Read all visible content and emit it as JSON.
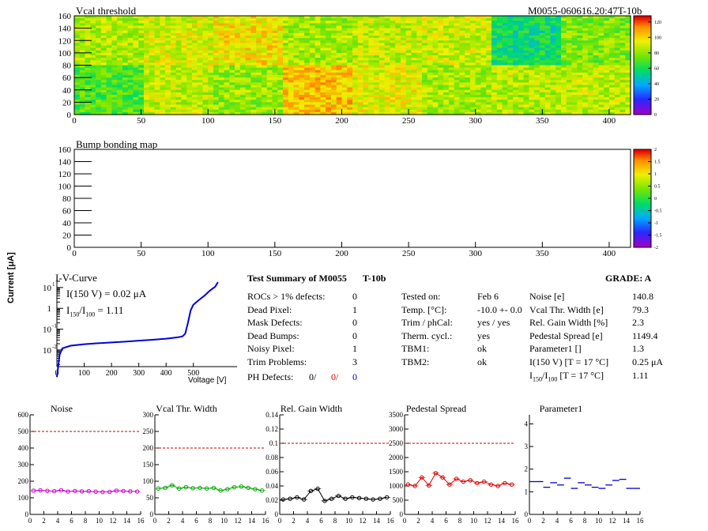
{
  "header": {
    "left_title": "Vcal threshold",
    "right_title": "M0055-060616.20:47T-10b"
  },
  "maps": {
    "vcal": {
      "title": "Vcal threshold",
      "x_ticks": [
        "0",
        "50",
        "100",
        "150",
        "200",
        "250",
        "300",
        "350",
        "400"
      ],
      "y_ticks": [
        "0",
        "20",
        "40",
        "60",
        "80",
        "100",
        "120",
        "140",
        "160"
      ],
      "z_ticks": [
        "0",
        "20",
        "40",
        "60",
        "80",
        "100",
        "120"
      ]
    },
    "bump": {
      "title": "Bump bonding map",
      "x_ticks": [
        "0",
        "50",
        "100",
        "150",
        "200",
        "250",
        "300",
        "350",
        "400"
      ],
      "y_ticks": [
        "0",
        "20",
        "40",
        "60",
        "80",
        "100",
        "120",
        "140",
        "160"
      ],
      "z_ticks": [
        "-2",
        "-1.5",
        "-1",
        "-0.5",
        "0",
        "0.5",
        "1",
        "1.5",
        "2"
      ]
    }
  },
  "iv": {
    "title": "I-V-Curve",
    "ylabel": "Current [μA]",
    "xlabel": "Voltage [V]",
    "x_ticks": [
      "0",
      "100",
      "200",
      "300",
      "400",
      "500"
    ],
    "note1": "I(150 V) = 0.02 μA",
    "note2_a": "I",
    "note2_sub1": "150",
    "note2_b": "/I",
    "note2_sub2": "100",
    "note2_c": " =  1.11",
    "points": [
      [
        0,
        0.0005
      ],
      [
        10,
        0.006
      ],
      [
        20,
        0.012
      ],
      [
        50,
        0.016
      ],
      [
        100,
        0.019
      ],
      [
        150,
        0.021
      ],
      [
        200,
        0.023
      ],
      [
        250,
        0.025
      ],
      [
        300,
        0.028
      ],
      [
        350,
        0.031
      ],
      [
        400,
        0.035
      ],
      [
        440,
        0.04
      ],
      [
        460,
        0.045
      ],
      [
        470,
        0.06
      ],
      [
        480,
        0.2
      ],
      [
        490,
        0.8
      ],
      [
        500,
        1.5
      ],
      [
        520,
        2.5
      ],
      [
        540,
        4
      ],
      [
        560,
        7
      ],
      [
        580,
        11
      ],
      [
        590,
        18
      ]
    ]
  },
  "summary": {
    "title": "Test Summary of M0055",
    "tag": "T-10b",
    "grade_label": "GRADE:  A",
    "left_rows": [
      {
        "label": "ROCs > 1% defects:",
        "value": "0"
      },
      {
        "label": "Dead Pixel:",
        "value": "1"
      },
      {
        "label": "Mask Defects:",
        "value": "0"
      },
      {
        "label": "Dead Bumps:",
        "value": "0"
      },
      {
        "label": "Noisy Pixel:",
        "value": "1"
      },
      {
        "label": "Trim Problems:",
        "value": "3"
      }
    ],
    "ph_label": "PH Defects:",
    "ph_v1": "0/",
    "ph_v2": "0/",
    "ph_v3": "0",
    "mid_rows": [
      {
        "label": "Tested on:",
        "value": "Feb 6"
      },
      {
        "label": "Temp. [°C]:",
        "value": "-10.0 +- 0.0"
      },
      {
        "label": "Trim / phCal:",
        "value": "yes / yes"
      },
      {
        "label": "Therm. cycl.:",
        "value": "yes"
      },
      {
        "label": "TBM1:",
        "value": "ok"
      },
      {
        "label": "TBM2:",
        "value": "ok"
      }
    ],
    "right_rows": [
      {
        "label": "Noise [e]",
        "value": "140.8"
      },
      {
        "label": "Vcal Thr. Width [e]",
        "value": "79.3"
      },
      {
        "label": "Rel. Gain Width [%]",
        "value": "2.3"
      },
      {
        "label": "Pedestal Spread [e]",
        "value": "1149.4"
      },
      {
        "label": "Parameter1 []",
        "value": "1.3"
      },
      {
        "label": "I(150 V) [T = 17 °C]",
        "value": "0.25 μA"
      }
    ],
    "ratio_a": "I",
    "ratio_sub1": "150",
    "ratio_b": "/I",
    "ratio_sub2": "100",
    "ratio_c": " [T = 17 °C]",
    "ratio_value": "1.11"
  },
  "colors": {
    "noise": "#cc00cc",
    "vcal": "#00aa00",
    "gain": "#000000",
    "ped": "#dd0000",
    "par": "#0000cc",
    "limit": "#cc0000"
  },
  "chart_data": [
    {
      "type": "line",
      "title": "Noise",
      "x": [
        0,
        1,
        2,
        3,
        4,
        5,
        6,
        7,
        8,
        9,
        10,
        11,
        12,
        13,
        14,
        15
      ],
      "values": [
        143,
        145,
        142,
        140,
        146,
        138,
        141,
        139,
        140,
        137,
        135,
        136,
        143,
        141,
        139,
        138
      ],
      "ylim": [
        0,
        600
      ],
      "y_ticks": [
        "0",
        "100",
        "200",
        "300",
        "400",
        "500",
        "600"
      ],
      "x_ticks": [
        "0",
        "2",
        "4",
        "6",
        "8",
        "10",
        "12",
        "14",
        "16"
      ],
      "limit": 500
    },
    {
      "type": "line",
      "title": "Vcal Thr. Width",
      "x": [
        0,
        1,
        2,
        3,
        4,
        5,
        6,
        7,
        8,
        9,
        10,
        11,
        12,
        13,
        14,
        15
      ],
      "values": [
        78,
        80,
        88,
        78,
        82,
        79,
        80,
        78,
        80,
        72,
        76,
        82,
        84,
        80,
        76,
        72
      ],
      "ylim": [
        0,
        300
      ],
      "y_ticks": [
        "0",
        "50",
        "100",
        "150",
        "200",
        "250",
        "300"
      ],
      "x_ticks": [
        "0",
        "2",
        "4",
        "6",
        "8",
        "10",
        "12",
        "14",
        "16"
      ],
      "limit": 200
    },
    {
      "type": "line",
      "title": "Rel. Gain Width",
      "x": [
        0,
        1,
        2,
        3,
        4,
        5,
        6,
        7,
        8,
        9,
        10,
        11,
        12,
        13,
        14,
        15
      ],
      "values": [
        0.021,
        0.022,
        0.024,
        0.021,
        0.033,
        0.036,
        0.019,
        0.022,
        0.026,
        0.022,
        0.024,
        0.023,
        0.022,
        0.021,
        0.022,
        0.024
      ],
      "ylim": [
        0,
        0.14
      ],
      "y_ticks": [
        "0",
        "0.02",
        "0.04",
        "0.06",
        "0.08",
        "0.1",
        "0.12",
        "0.14"
      ],
      "x_ticks": [
        "0",
        "2",
        "4",
        "6",
        "8",
        "10",
        "12",
        "14",
        "16"
      ],
      "limit": 0.1
    },
    {
      "type": "line",
      "title": "Pedestal Spread",
      "x": [
        0,
        1,
        2,
        3,
        4,
        5,
        6,
        7,
        8,
        9,
        10,
        11,
        12,
        13,
        14,
        15
      ],
      "values": [
        1050,
        1000,
        1300,
        1020,
        1450,
        1300,
        1050,
        1250,
        1150,
        1200,
        1100,
        1150,
        1050,
        1000,
        1100,
        1050
      ],
      "ylim": [
        0,
        3500
      ],
      "y_ticks": [
        "0",
        "500",
        "1000",
        "1500",
        "2000",
        "2500",
        "3000",
        "3500"
      ],
      "x_ticks": [
        "0",
        "2",
        "4",
        "6",
        "8",
        "10",
        "12",
        "14",
        "16"
      ],
      "limit": 2500
    },
    {
      "type": "scatter",
      "title": "Parameter1",
      "x": [
        0,
        1,
        2,
        3,
        4,
        5,
        6,
        7,
        8,
        9,
        10,
        11,
        12,
        13,
        14,
        15
      ],
      "values": [
        1.45,
        1.45,
        1.2,
        1.4,
        1.3,
        1.6,
        1.15,
        1.4,
        1.3,
        1.2,
        1.15,
        1.3,
        1.5,
        1.55,
        1.15,
        1.15
      ],
      "ylim": [
        0,
        4.4
      ],
      "y_ticks": [
        "0",
        "1",
        "2",
        "3",
        "4"
      ],
      "x_ticks": [
        "0",
        "2",
        "4",
        "6",
        "8",
        "10",
        "12",
        "14",
        "16"
      ]
    }
  ]
}
